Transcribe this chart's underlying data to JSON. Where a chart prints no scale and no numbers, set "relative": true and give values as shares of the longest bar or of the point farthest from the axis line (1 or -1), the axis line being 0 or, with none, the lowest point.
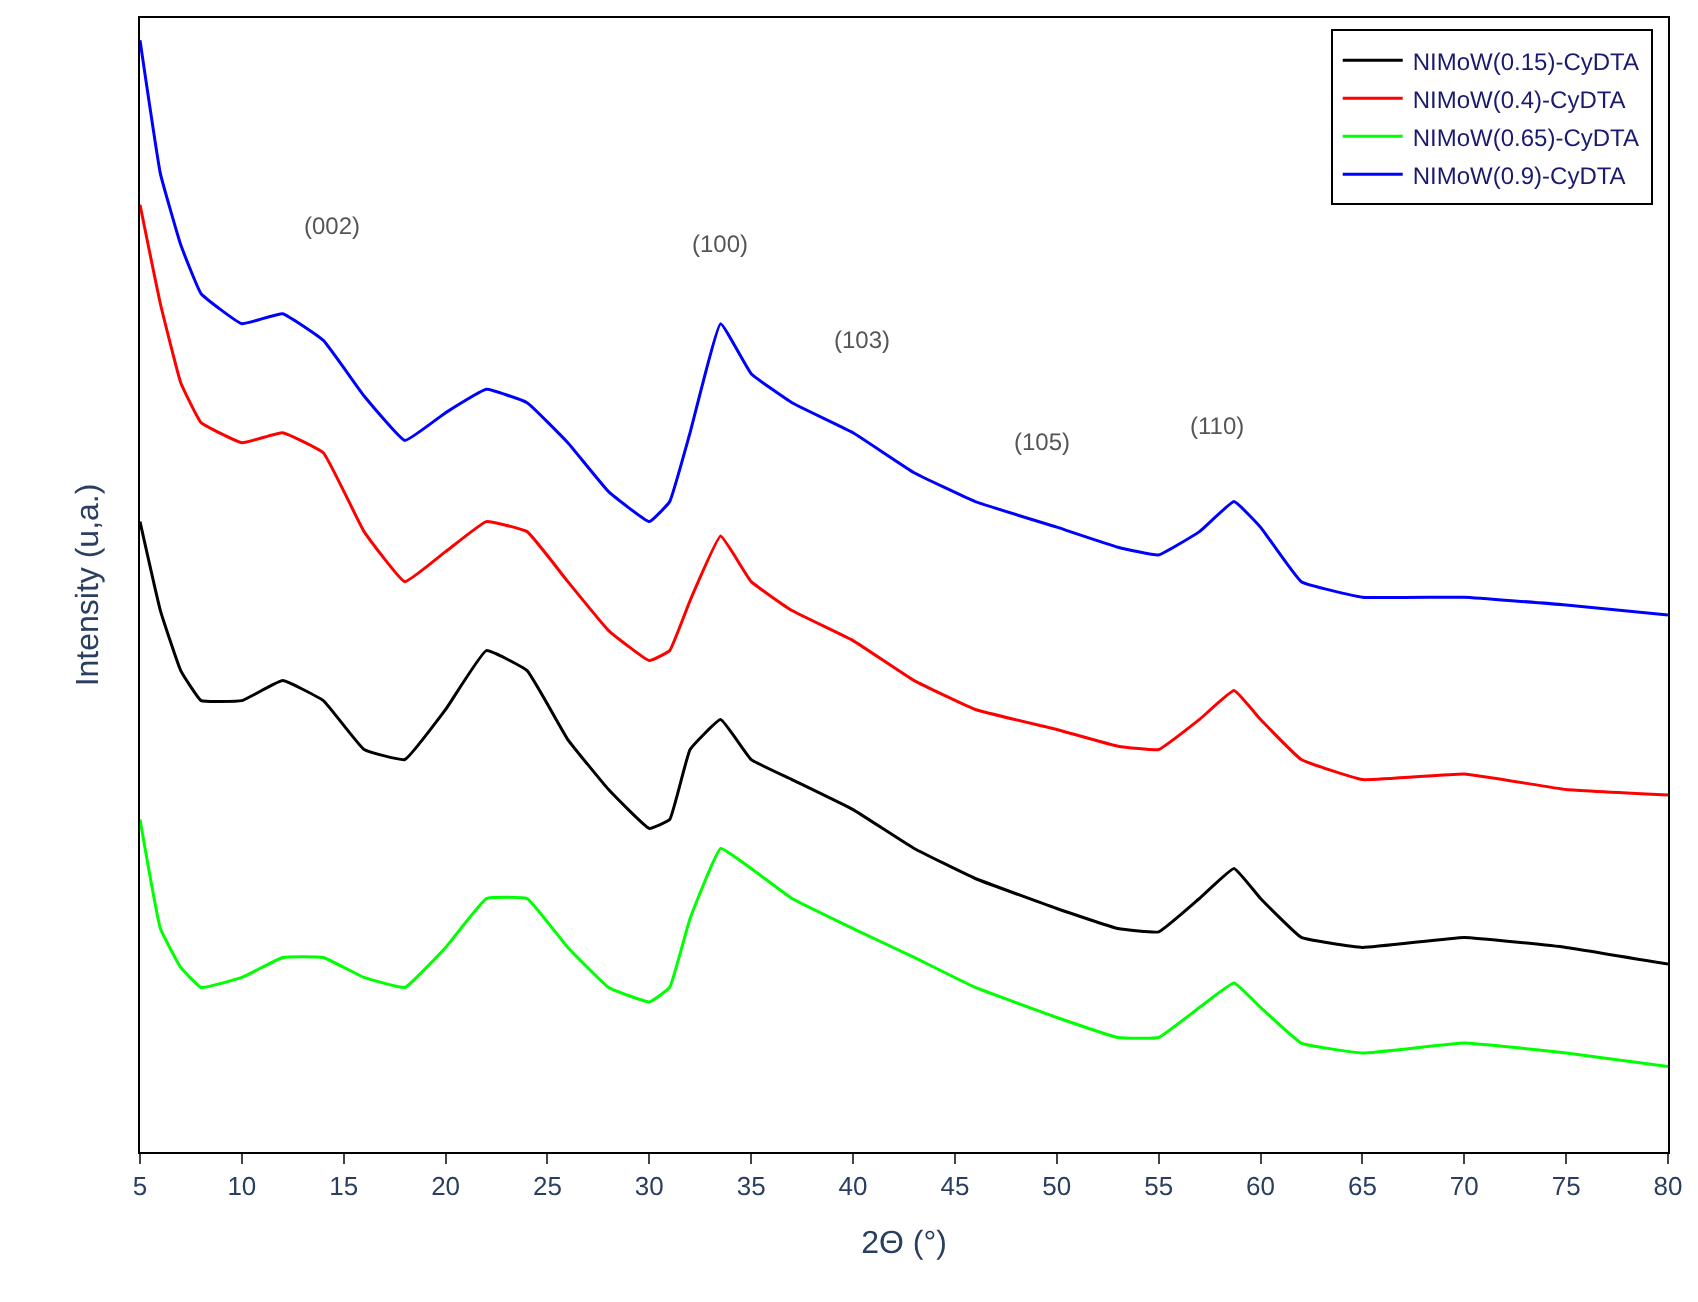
{
  "chart_data": {
    "type": "line",
    "relative": true,
    "xlabel": "2Θ (°)",
    "ylabel": "Intensity (u,a.)",
    "xlim": [
      5,
      80
    ],
    "xticks": [
      5,
      10,
      15,
      20,
      25,
      30,
      35,
      40,
      45,
      50,
      55,
      60,
      65,
      70,
      75,
      80
    ],
    "legend": "top right",
    "marker": "none",
    "line_style": "solid",
    "x": [
      5,
      6,
      7,
      8,
      10,
      12,
      14,
      16,
      18,
      20,
      22,
      24,
      26,
      28,
      30,
      31,
      32,
      33.5,
      35,
      37,
      40,
      43,
      46,
      50,
      53,
      55,
      57,
      58.7,
      60,
      62,
      65,
      70,
      75,
      80
    ],
    "series": [
      {
        "name": "NIMoW(0.15)-CyDTA",
        "color": "#000000",
        "values": [
          0.567,
          0.487,
          0.433,
          0.406,
          0.406,
          0.424,
          0.406,
          0.362,
          0.353,
          0.398,
          0.451,
          0.433,
          0.371,
          0.326,
          0.291,
          0.299,
          0.362,
          0.389,
          0.353,
          0.335,
          0.308,
          0.273,
          0.246,
          0.219,
          0.201,
          0.198,
          0.228,
          0.255,
          0.228,
          0.193,
          0.184,
          0.193,
          0.184,
          0.169
        ]
      },
      {
        "name": "NIMoW(0.4)-CyDTA",
        "color": "#ff0000",
        "values": [
          0.852,
          0.763,
          0.692,
          0.656,
          0.638,
          0.647,
          0.629,
          0.558,
          0.513,
          0.54,
          0.567,
          0.558,
          0.513,
          0.469,
          0.442,
          0.451,
          0.496,
          0.554,
          0.513,
          0.487,
          0.46,
          0.424,
          0.398,
          0.38,
          0.365,
          0.362,
          0.389,
          0.415,
          0.389,
          0.353,
          0.335,
          0.34,
          0.326,
          0.321
        ]
      },
      {
        "name": "NIMoW(0.65)-CyDTA",
        "color": "#00ff00",
        "values": [
          0.299,
          0.201,
          0.166,
          0.148,
          0.157,
          0.175,
          0.175,
          0.157,
          0.148,
          0.184,
          0.228,
          0.228,
          0.184,
          0.148,
          0.135,
          0.148,
          0.21,
          0.273,
          0.255,
          0.228,
          0.201,
          0.175,
          0.148,
          0.121,
          0.103,
          0.103,
          0.13,
          0.152,
          0.13,
          0.098,
          0.089,
          0.098,
          0.089,
          0.077
        ]
      },
      {
        "name": "NIMoW(0.9)-CyDTA",
        "color": "#0000ff",
        "values": [
          1.0,
          0.88,
          0.816,
          0.772,
          0.745,
          0.754,
          0.73,
          0.68,
          0.64,
          0.665,
          0.686,
          0.674,
          0.638,
          0.594,
          0.567,
          0.585,
          0.647,
          0.745,
          0.7,
          0.674,
          0.647,
          0.611,
          0.585,
          0.562,
          0.544,
          0.537,
          0.558,
          0.585,
          0.562,
          0.513,
          0.499,
          0.499,
          0.492,
          0.483
        ]
      }
    ],
    "annotations": [
      "(002)",
      "(100)",
      "(103)",
      "(105)",
      "(110)"
    ]
  }
}
